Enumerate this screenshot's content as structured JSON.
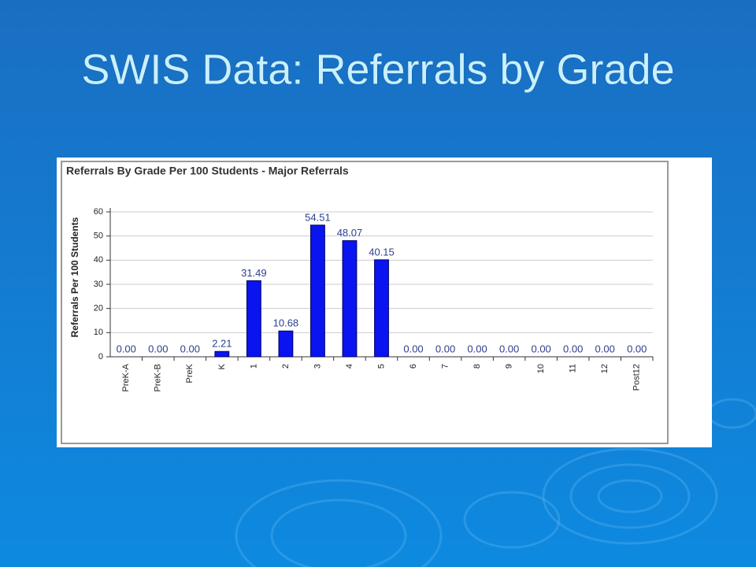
{
  "slide_title": "SWIS Data: Referrals by Grade",
  "chart_data": {
    "type": "bar",
    "title": "Referrals By Grade Per 100 Students - Major Referrals",
    "y_label": "Referrals Per 100 Students",
    "categories": [
      "PreK-A",
      "PreK-B",
      "PreK",
      "K",
      "1",
      "2",
      "3",
      "4",
      "5",
      "6",
      "7",
      "8",
      "9",
      "10",
      "11",
      "12",
      "Post12"
    ],
    "values": [
      0,
      0,
      0,
      2.21,
      31.49,
      10.68,
      54.51,
      48.07,
      40.15,
      0,
      0,
      0,
      0,
      0,
      0,
      0,
      0
    ],
    "value_labels": [
      "0.00",
      "0.00",
      "0.00",
      "2.21",
      "31.49",
      "10.68",
      "54.51",
      "48.07",
      "40.15",
      "0.00",
      "0.00",
      "0.00",
      "0.00",
      "0.00",
      "0.00",
      "0.00",
      "0.00"
    ],
    "color": "#0a14f0",
    "ylim": [
      0,
      60
    ],
    "yticks": [
      0,
      10,
      20,
      30,
      40,
      50,
      60
    ],
    "grid": true
  }
}
